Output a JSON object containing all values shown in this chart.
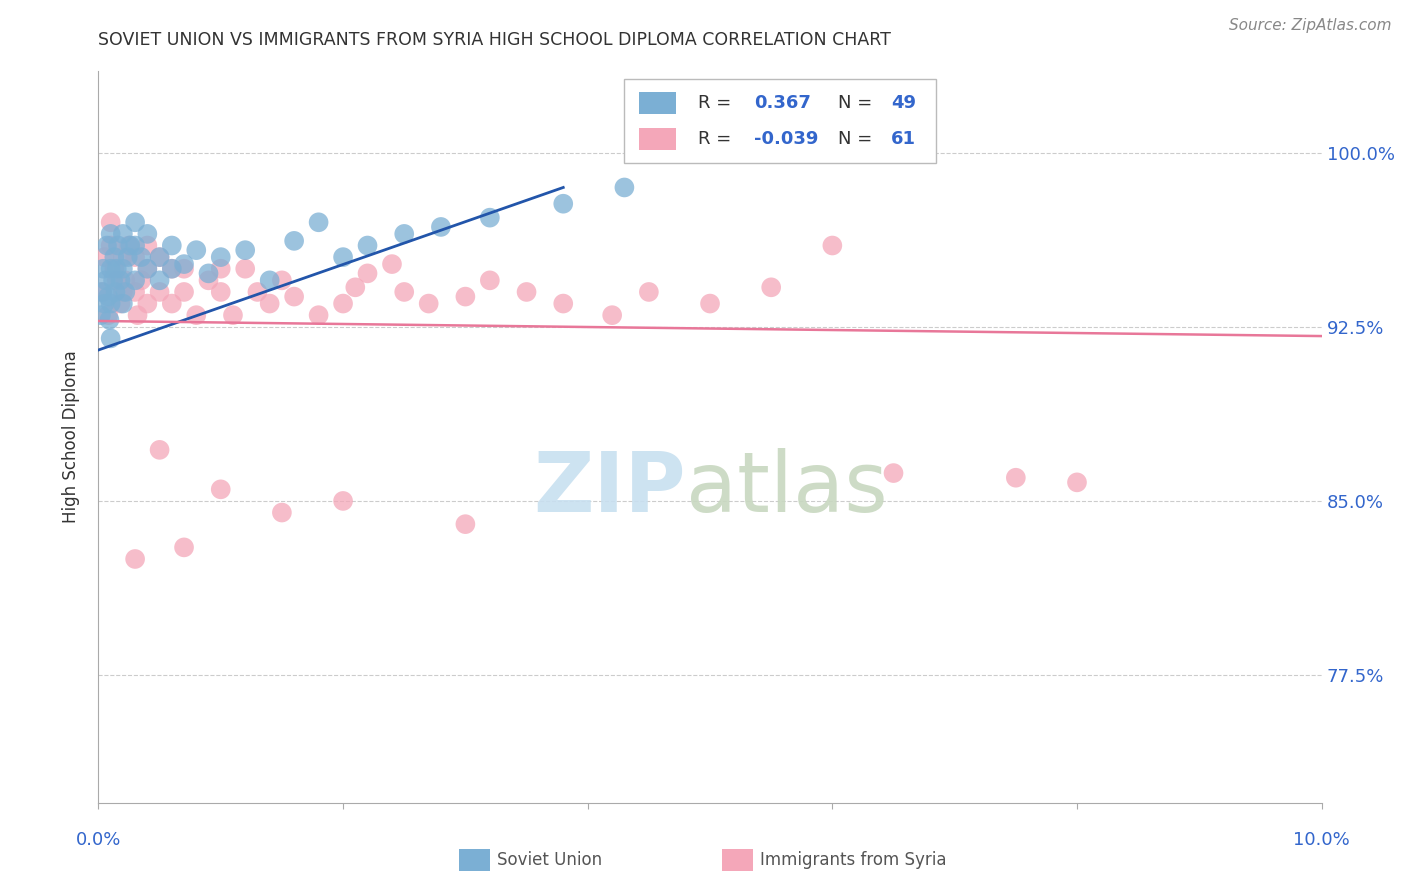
{
  "title": "SOVIET UNION VS IMMIGRANTS FROM SYRIA HIGH SCHOOL DIPLOMA CORRELATION CHART",
  "source": "Source: ZipAtlas.com",
  "ylabel": "High School Diploma",
  "ytick_values": [
    0.775,
    0.85,
    0.925,
    1.0
  ],
  "xlim": [
    0.0,
    0.1
  ],
  "ylim": [
    0.72,
    1.035
  ],
  "soviet_color": "#7bafd4",
  "syria_color": "#f4a7b9",
  "soviet_line_color": "#2255aa",
  "syria_line_color": "#e87799",
  "soviet_x": [
    0.0002,
    0.0003,
    0.0004,
    0.0005,
    0.0006,
    0.0007,
    0.0008,
    0.0009,
    0.001,
    0.001,
    0.001,
    0.001,
    0.0012,
    0.0013,
    0.0014,
    0.0015,
    0.0016,
    0.0018,
    0.002,
    0.002,
    0.002,
    0.0022,
    0.0024,
    0.0026,
    0.003,
    0.003,
    0.003,
    0.0035,
    0.004,
    0.004,
    0.005,
    0.005,
    0.006,
    0.006,
    0.007,
    0.008,
    0.009,
    0.01,
    0.012,
    0.014,
    0.016,
    0.018,
    0.02,
    0.022,
    0.025,
    0.028,
    0.032,
    0.038,
    0.043
  ],
  "soviet_y": [
    0.93,
    0.94,
    0.95,
    0.935,
    0.945,
    0.96,
    0.938,
    0.928,
    0.92,
    0.935,
    0.95,
    0.965,
    0.945,
    0.955,
    0.94,
    0.95,
    0.96,
    0.945,
    0.935,
    0.95,
    0.965,
    0.94,
    0.955,
    0.96,
    0.945,
    0.96,
    0.97,
    0.955,
    0.95,
    0.965,
    0.955,
    0.945,
    0.95,
    0.96,
    0.952,
    0.958,
    0.948,
    0.955,
    0.958,
    0.945,
    0.962,
    0.97,
    0.955,
    0.96,
    0.965,
    0.968,
    0.972,
    0.978,
    0.985
  ],
  "syria_x": [
    0.0003,
    0.0005,
    0.0008,
    0.001,
    0.001,
    0.0013,
    0.0015,
    0.0018,
    0.002,
    0.002,
    0.0022,
    0.0025,
    0.003,
    0.003,
    0.0032,
    0.0035,
    0.004,
    0.004,
    0.004,
    0.005,
    0.005,
    0.006,
    0.006,
    0.007,
    0.007,
    0.008,
    0.009,
    0.01,
    0.01,
    0.011,
    0.012,
    0.013,
    0.014,
    0.015,
    0.016,
    0.018,
    0.02,
    0.021,
    0.022,
    0.024,
    0.025,
    0.027,
    0.03,
    0.032,
    0.035,
    0.038,
    0.042,
    0.045,
    0.05,
    0.055,
    0.06,
    0.065,
    0.075,
    0.08,
    0.003,
    0.005,
    0.007,
    0.01,
    0.015,
    0.02,
    0.03
  ],
  "syria_y": [
    0.94,
    0.955,
    0.93,
    0.96,
    0.97,
    0.95,
    0.945,
    0.935,
    0.94,
    0.955,
    0.945,
    0.96,
    0.94,
    0.955,
    0.93,
    0.945,
    0.95,
    0.935,
    0.96,
    0.94,
    0.955,
    0.95,
    0.935,
    0.95,
    0.94,
    0.93,
    0.945,
    0.95,
    0.94,
    0.93,
    0.95,
    0.94,
    0.935,
    0.945,
    0.938,
    0.93,
    0.935,
    0.942,
    0.948,
    0.952,
    0.94,
    0.935,
    0.938,
    0.945,
    0.94,
    0.935,
    0.93,
    0.94,
    0.935,
    0.942,
    0.96,
    0.862,
    0.86,
    0.858,
    0.825,
    0.872,
    0.83,
    0.855,
    0.845,
    0.85,
    0.84
  ],
  "sov_trend_x": [
    0.0,
    0.038
  ],
  "sov_trend_y": [
    0.915,
    0.985
  ],
  "syr_trend_x": [
    0.0,
    0.1
  ],
  "syr_trend_y": [
    0.9275,
    0.921
  ]
}
